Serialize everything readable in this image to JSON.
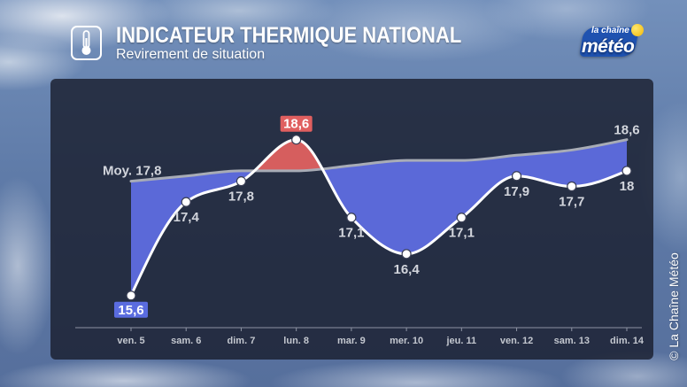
{
  "icons": {
    "header": "thermometer-icon",
    "logo": "sun-icon"
  },
  "logo": {
    "line1": "la chaîne",
    "line2": "météo"
  },
  "copyright": "© La Chaîne Météo",
  "colors": {
    "below_average_fill": "#5b69d8",
    "above_average_fill": "#d65e5e",
    "average_line": "#a8acb6",
    "temperature_line": "#ffffff",
    "min_label_box": "#5a6ce0",
    "max_label_box": "#e05f5f",
    "panel": "#1c2030",
    "axis": "#8d93a3"
  },
  "chart_data": {
    "type": "line",
    "title": "INDICATEUR THERMIQUE NATIONAL",
    "subtitle": "Revirement de situation",
    "categories": [
      "ven. 5",
      "sam. 6",
      "dim. 7",
      "lun. 8",
      "mar. 9",
      "mer. 10",
      "jeu. 11",
      "ven. 12",
      "sam. 13",
      "dim. 14"
    ],
    "ylim": [
      15,
      19.6
    ],
    "grid": false,
    "series": [
      {
        "name": "Moy.",
        "values": [
          17.8,
          17.9,
          18.0,
          18.0,
          18.1,
          18.2,
          18.2,
          18.3,
          18.4,
          18.6
        ],
        "start_label": "17,8",
        "end_label": "18,6"
      },
      {
        "values": [
          15.6,
          17.4,
          17.8,
          18.6,
          17.1,
          16.4,
          17.1,
          17.9,
          17.7,
          18.0
        ],
        "labels": [
          "15,6",
          "17,4",
          "17,8",
          "18,6",
          "17,1",
          "16,4",
          "17,1",
          "17,9",
          "17,7",
          "18"
        ]
      }
    ]
  }
}
